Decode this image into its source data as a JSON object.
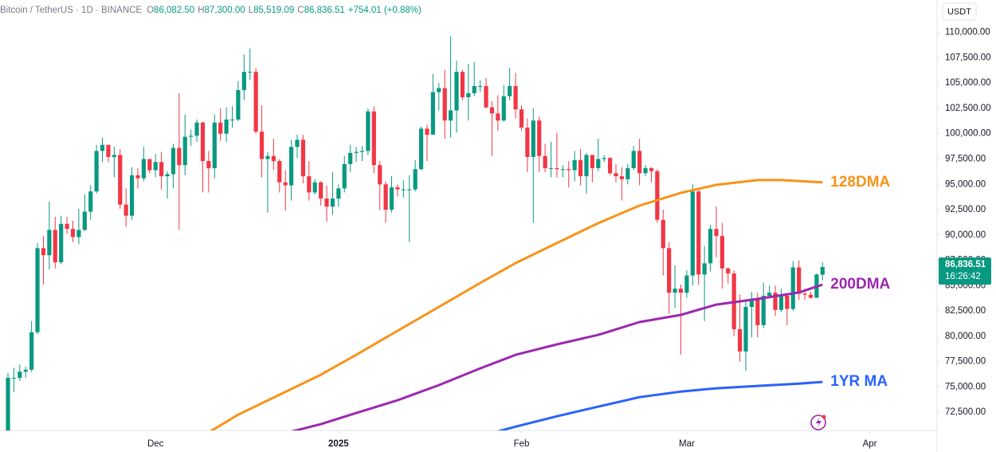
{
  "chart_data": {
    "type": "candlestick",
    "header": {
      "symbol": "Bitcoin / TetherUS · 1D · BINANCE",
      "fields": [
        {
          "key": "O",
          "value": "86,082.50"
        },
        {
          "key": "H",
          "value": "87,300.00"
        },
        {
          "key": "L",
          "value": "85,519.09"
        },
        {
          "key": "C",
          "value": "86,836.51"
        }
      ],
      "change": "+754.01 (+0.88%)"
    },
    "currency": "USDT",
    "last_price_label": "86,836.51",
    "countdown": "16:26:42",
    "up_color": "#089981",
    "down_color": "#f23645",
    "open": [
      69400,
      75900,
      75900,
      76500,
      76700,
      80400,
      88700,
      88000,
      90500,
      87300,
      91100,
      90600,
      89800,
      90500,
      92300,
      94300,
      98300,
      98900,
      97700,
      97900,
      93000,
      91900,
      95900,
      95600,
      97500,
      96400,
      97200,
      95800,
      96000,
      98600,
      96900,
      99700,
      99800,
      101100,
      97300,
      96600,
      101100,
      100000,
      101400,
      101400,
      104300,
      106100,
      106100,
      100200,
      97500,
      97800,
      97300,
      95200,
      94900,
      98700,
      99400,
      95800,
      94200,
      95200,
      93600,
      92800,
      93600,
      94600,
      97000,
      98100,
      98200,
      98300,
      102200,
      96900,
      95000,
      92500,
      94700,
      94500,
      94500,
      94500,
      96500,
      100500,
      99900,
      104100,
      104500,
      101300,
      102300,
      106100,
      103600,
      104000,
      104700,
      104700,
      102600,
      102000,
      101300,
      103700,
      104700,
      102400,
      100600,
      97700,
      101300,
      97800,
      96600,
      96600,
      96500,
      96500,
      96400,
      97400,
      95800,
      97900,
      96600,
      97500,
      97600,
      96100,
      95800,
      95500,
      96600,
      98300,
      96100,
      96600,
      96300,
      91500,
      88700,
      84300,
      84700,
      84300,
      86000,
      94300,
      86100,
      87200,
      90600,
      89900,
      86700,
      86200,
      80700,
      78500,
      82900,
      83700,
      81100,
      84000,
      84300,
      82600,
      84000,
      82700,
      86800,
      84200,
      84100,
      83800,
      86082.5
    ],
    "high": [
      76400,
      76900,
      77200,
      77000,
      81500,
      89200,
      89900,
      93300,
      91800,
      91900,
      91800,
      91400,
      92600,
      94000,
      94900,
      98900,
      99600,
      98800,
      98700,
      98500,
      94600,
      96700,
      96600,
      98700,
      97500,
      98000,
      98200,
      96300,
      99000,
      104000,
      101900,
      100400,
      101400,
      101200,
      98300,
      101900,
      102500,
      102600,
      102700,
      105200,
      107800,
      108400,
      106500,
      102800,
      98200,
      99500,
      97500,
      96400,
      99400,
      99900,
      99900,
      97300,
      95500,
      95300,
      94900,
      96200,
      95000,
      97800,
      98900,
      98700,
      98800,
      102500,
      102700,
      97300,
      95300,
      95800,
      95000,
      95400,
      95900,
      97400,
      100700,
      100900,
      105900,
      105000,
      106300,
      109600,
      107200,
      106300,
      106900,
      107100,
      105300,
      105500,
      103200,
      103800,
      104800,
      106500,
      106000,
      102800,
      101500,
      102500,
      101700,
      99000,
      99200,
      100100,
      96900,
      97300,
      98300,
      98500,
      98100,
      97900,
      99500,
      97900,
      97700,
      97000,
      96700,
      97000,
      98800,
      99500,
      96900,
      96700,
      96500,
      92500,
      89300,
      87000,
      85100,
      86500,
      95000,
      94400,
      88900,
      91000,
      92800,
      91200,
      86800,
      86500,
      84100,
      83600,
      84400,
      84300,
      85300,
      85000,
      85000,
      84700,
      84000,
      87400,
      87500,
      84700,
      84400,
      86200,
      87300
    ],
    "low": [
      69300,
      74500,
      75600,
      75900,
      76500,
      80200,
      85100,
      86600,
      86700,
      87100,
      90100,
      89300,
      89100,
      90400,
      91500,
      94100,
      97200,
      97200,
      95700,
      92600,
      90800,
      91500,
      94600,
      95300,
      96100,
      95700,
      94500,
      93600,
      94600,
      90500,
      95900,
      98800,
      99200,
      94200,
      94200,
      95600,
      99300,
      99200,
      100600,
      101200,
      103300,
      105300,
      100000,
      95700,
      92200,
      96400,
      94200,
      92400,
      93400,
      97600,
      95100,
      93400,
      94000,
      92900,
      91300,
      92000,
      92800,
      94200,
      96200,
      97200,
      97300,
      97900,
      96100,
      92500,
      91200,
      92200,
      93800,
      93700,
      89300,
      94300,
      96400,
      97300,
      99900,
      102300,
      99500,
      99600,
      100100,
      103300,
      101300,
      103700,
      104100,
      102500,
      97800,
      100300,
      101200,
      103300,
      101500,
      100300,
      96200,
      91200,
      96200,
      96200,
      95700,
      95700,
      95700,
      94700,
      95300,
      94900,
      94100,
      95200,
      96300,
      97200,
      95900,
      95200,
      93400,
      95000,
      96400,
      94900,
      95800,
      95200,
      91200,
      86000,
      82200,
      82800,
      78200,
      83800,
      85000,
      85100,
      81500,
      86400,
      87800,
      84700,
      85200,
      80000,
      77500,
      76600,
      79900,
      79900,
      80800,
      83900,
      82000,
      82400,
      81100,
      82500,
      83600,
      83600,
      83700,
      83800,
      85519.09
    ],
    "close": [
      75900,
      75900,
      76500,
      76700,
      80400,
      88700,
      88000,
      90500,
      87300,
      91100,
      90600,
      89800,
      90500,
      92300,
      94300,
      98300,
      98900,
      97700,
      97900,
      93000,
      91900,
      95900,
      95600,
      97500,
      96400,
      97200,
      95800,
      96000,
      98600,
      96900,
      99700,
      99800,
      101100,
      97300,
      96600,
      101100,
      100000,
      101400,
      101400,
      104300,
      106100,
      106100,
      100200,
      97500,
      97800,
      97300,
      95200,
      94900,
      98700,
      99400,
      95800,
      94200,
      95200,
      93600,
      92800,
      93600,
      94600,
      97000,
      98100,
      98200,
      98300,
      102200,
      96900,
      95000,
      92500,
      94700,
      94500,
      94500,
      94500,
      96500,
      100500,
      99900,
      104100,
      104500,
      101300,
      102300,
      106100,
      103600,
      104000,
      104700,
      104700,
      102600,
      102000,
      101300,
      103700,
      104700,
      102400,
      100600,
      97700,
      101300,
      97800,
      96600,
      96600,
      96500,
      96500,
      96400,
      97400,
      95800,
      97900,
      96600,
      97500,
      97600,
      96100,
      95800,
      95500,
      96600,
      98300,
      96100,
      96600,
      96300,
      91500,
      88700,
      84300,
      84700,
      84300,
      86000,
      94300,
      86100,
      87200,
      90600,
      89900,
      86700,
      86200,
      80700,
      78500,
      82900,
      83700,
      81100,
      84000,
      84300,
      82600,
      84000,
      82700,
      86800,
      84200,
      84100,
      83800,
      86100,
      86836.51
    ],
    "series": [
      {
        "name": "128DMA",
        "color": "#f7931a",
        "x": [
          34,
          39,
          46,
          53,
          59,
          66,
          73,
          80,
          86,
          93,
          100,
          107,
          114,
          120,
          127,
          131,
          138
        ],
        "values": [
          70500,
          72260,
          74230,
          76200,
          78170,
          80540,
          82900,
          85260,
          87230,
          89200,
          91170,
          92900,
          94160,
          94950,
          95420,
          95420,
          95190
        ]
      },
      {
        "name": "200DMA",
        "color": "#9c27b0",
        "x": [
          47,
          53,
          59,
          66,
          73,
          80,
          86,
          93,
          100,
          107,
          114,
          120,
          127,
          134,
          138
        ],
        "values": [
          70450,
          71320,
          72420,
          73680,
          75180,
          76830,
          78170,
          79200,
          80140,
          81400,
          82110,
          83130,
          83690,
          84320,
          85100
        ]
      },
      {
        "name": "1YR MA",
        "color": "#2962ff",
        "x": [
          82,
          86,
          93,
          100,
          107,
          114,
          120,
          127,
          134,
          138
        ],
        "values": [
          70450,
          71080,
          72100,
          73050,
          73990,
          74540,
          74860,
          75100,
          75330,
          75490
        ]
      }
    ],
    "xlim": [
      -1.35,
      157.4
    ],
    "xticks": [
      {
        "value": 25,
        "label": "Dec"
      },
      {
        "value": 56,
        "label": "2025"
      },
      {
        "value": 87,
        "label": "Feb"
      },
      {
        "value": 115,
        "label": "Mar"
      },
      {
        "value": 146,
        "label": "Apr"
      }
    ],
    "ylim": [
      70700,
      113200
    ],
    "yticks": [
      {
        "value": 72500,
        "label": "72,500.00"
      },
      {
        "value": 75000,
        "label": "75,000.00"
      },
      {
        "value": 77500,
        "label": "77,500.00"
      },
      {
        "value": 80000,
        "label": "80,000.00"
      },
      {
        "value": 82500,
        "label": "82,500.00"
      },
      {
        "value": 85000,
        "label": "85,000.00"
      },
      {
        "value": 87500,
        "label": "87,500.00"
      },
      {
        "value": 90000,
        "label": "90,000.00"
      },
      {
        "value": 92500,
        "label": "92,500.00"
      },
      {
        "value": 95000,
        "label": "95,000.00"
      },
      {
        "value": 97500,
        "label": "97,500.00"
      },
      {
        "value": 100000,
        "label": "100,000.00"
      },
      {
        "value": 102500,
        "label": "102,500.00"
      },
      {
        "value": 105000,
        "label": "105,000.00"
      },
      {
        "value": 107500,
        "label": "107,500.00"
      },
      {
        "value": 110000,
        "label": "110,000.00"
      }
    ],
    "grid": false
  }
}
